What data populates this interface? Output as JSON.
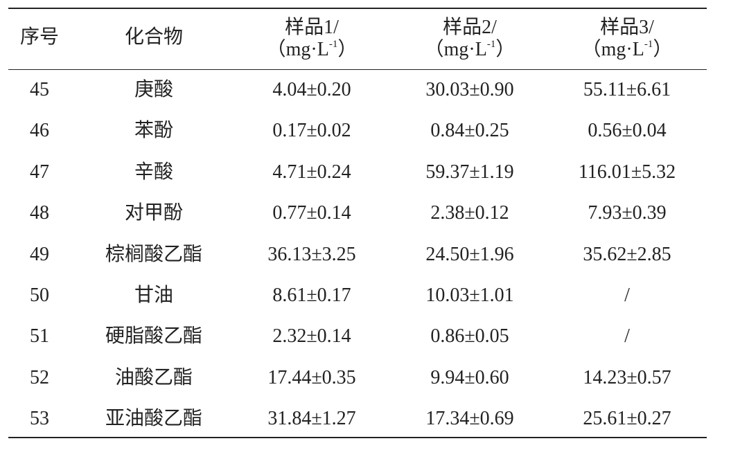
{
  "table": {
    "header": [
      {
        "name": "序号"
      },
      {
        "name": "化合物"
      },
      {
        "name": "样品1/",
        "unit_prefix": "（mg·L",
        "unit_exp": "-1",
        "unit_suffix": "）"
      },
      {
        "name": "样品2/",
        "unit_prefix": "（mg·L",
        "unit_exp": "-1",
        "unit_suffix": "）"
      },
      {
        "name": "样品3/",
        "unit_prefix": "（mg·L",
        "unit_exp": "-1",
        "unit_suffix": "）"
      }
    ],
    "rows": [
      [
        45,
        "庚酸",
        "4.04±0.20",
        "30.03±0.90",
        "55.11±6.61"
      ],
      [
        46,
        "苯酚",
        "0.17±0.02",
        "0.84±0.25",
        "0.56±0.04"
      ],
      [
        47,
        "辛酸",
        "4.71±0.24",
        "59.37±1.19",
        "116.01±5.32"
      ],
      [
        48,
        "对甲酚",
        "0.77±0.14",
        "2.38±0.12",
        "7.93±0.39"
      ],
      [
        49,
        "棕榈酸乙酯",
        "36.13±3.25",
        "24.50±1.96",
        "35.62±2.85"
      ],
      [
        50,
        "甘油",
        "8.61±0.17",
        "10.03±1.01",
        "/"
      ],
      [
        51,
        "硬脂酸乙酯",
        "2.32±0.14",
        "0.86±0.05",
        "/"
      ],
      [
        52,
        "油酸乙酯",
        "17.44±0.35",
        "9.94±0.60",
        "14.23±0.57"
      ],
      [
        53,
        "亚油酸乙酯",
        "31.84±1.27",
        "17.34±0.69",
        "25.61±0.27"
      ]
    ]
  }
}
